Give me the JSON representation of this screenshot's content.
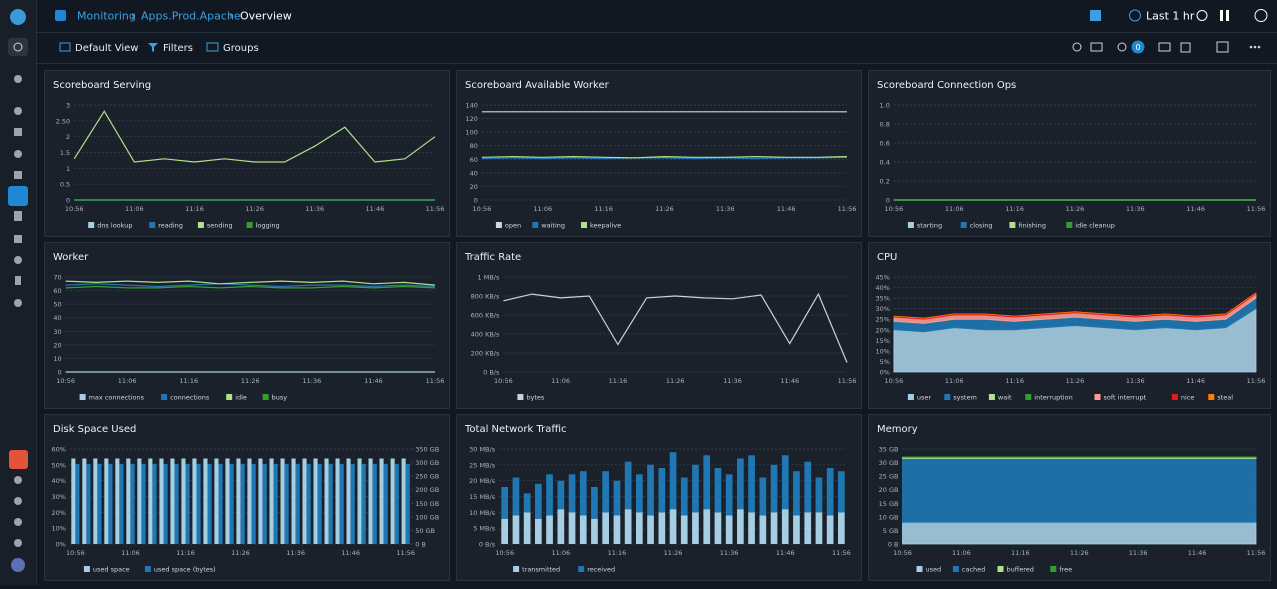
{
  "header": {
    "breadcrumb": [
      "Monitoring",
      "Apps.Prod.Apache",
      "Overview"
    ],
    "time_range": "Last 1 hr",
    "alert_count": "0"
  },
  "toolbar": [
    "Default View",
    "Filters",
    "Groups"
  ],
  "chart_data": [
    {
      "type": "line",
      "title": "Scoreboard Serving",
      "categories": [
        "10:56",
        null,
        "11:06",
        null,
        "11:16",
        null,
        "11:26",
        null,
        "11:36",
        null,
        "11:46",
        null,
        "11:56"
      ],
      "ylim": [
        0,
        3
      ],
      "yticks": [
        0,
        0.5,
        1,
        1.5,
        2,
        {
          "value": 2.5,
          "label": "2.50"
        },
        3
      ],
      "grid": true,
      "series": [
        {
          "name": "dns lookup",
          "color": "#a6cee3",
          "values": [
            0,
            0,
            0,
            0,
            0,
            0,
            0,
            0,
            0,
            0,
            0,
            0,
            0
          ]
        },
        {
          "name": "reading",
          "color": "#1f78b4",
          "values": [
            0,
            0,
            0,
            0,
            0,
            0,
            0,
            0,
            0,
            0,
            0,
            0,
            0
          ]
        },
        {
          "name": "sending",
          "color": "#b2df8a",
          "values": [
            1.3,
            2.8,
            1.2,
            1.3,
            1.2,
            1.3,
            1.2,
            1.2,
            1.7,
            2.3,
            1.2,
            1.3,
            2.0
          ]
        },
        {
          "name": "logging",
          "color": "#33a02c",
          "values": [
            0,
            0,
            0,
            0,
            0,
            0,
            0,
            0,
            0,
            0,
            0,
            0,
            0
          ]
        }
      ]
    },
    {
      "type": "line",
      "title": "Scoreboard Available Worker",
      "categories": [
        "10:56",
        null,
        "11:06",
        null,
        "11:16",
        null,
        "11:26",
        null,
        "11:36",
        null,
        "11:46",
        null,
        "11:56"
      ],
      "ylim": [
        0,
        140
      ],
      "yticks": [
        0,
        20,
        40,
        60,
        80,
        100,
        120,
        140
      ],
      "grid": true,
      "series": [
        {
          "name": "open",
          "color": "#c8dbe6",
          "values": [
            130,
            130,
            130,
            130,
            130,
            130,
            130,
            130,
            130,
            130,
            130,
            130,
            130
          ]
        },
        {
          "name": "waiting",
          "color": "#1f78b4",
          "values": [
            61,
            62,
            61,
            62,
            61,
            62,
            62,
            61,
            62,
            61,
            62,
            62,
            63
          ]
        },
        {
          "name": "keepalive",
          "color": "#b2df8a",
          "values": [
            63,
            64,
            63,
            64,
            63,
            62,
            64,
            63,
            63,
            64,
            63,
            63,
            64
          ]
        }
      ]
    },
    {
      "type": "line",
      "title": "Scoreboard Connection Ops",
      "categories": [
        "10:56",
        null,
        "11:06",
        null,
        "11:16",
        null,
        "11:26",
        null,
        "11:36",
        null,
        "11:46",
        null,
        "11:56"
      ],
      "ylim": [
        0,
        1
      ],
      "yticks": [
        0,
        0.2,
        0.4,
        0.6,
        0.8,
        {
          "value": 1,
          "label": "1.0"
        }
      ],
      "grid": true,
      "series": [
        {
          "name": "starting",
          "color": "#a6cee3",
          "values": [
            0,
            0,
            0,
            0,
            0,
            0,
            0,
            0,
            0,
            0,
            0,
            0,
            0
          ]
        },
        {
          "name": "closing",
          "color": "#1f78b4",
          "values": [
            0,
            0,
            0,
            0,
            0,
            0,
            0,
            0,
            0,
            0,
            0,
            0,
            0
          ]
        },
        {
          "name": "finishing",
          "color": "#b2df8a",
          "values": [
            0,
            0,
            0,
            0,
            0,
            0,
            0,
            0,
            0,
            0,
            0,
            0,
            0
          ]
        },
        {
          "name": "idle cleanup",
          "color": "#33a02c",
          "values": [
            0,
            0,
            0,
            0,
            0,
            0,
            0,
            0,
            0,
            0,
            0,
            0,
            0
          ]
        }
      ]
    },
    {
      "type": "line",
      "title": "Worker",
      "categories": [
        "10:56",
        null,
        "11:06",
        null,
        "11:16",
        null,
        "11:26",
        null,
        "11:36",
        null,
        "11:46",
        null,
        "11:56"
      ],
      "ylim": [
        0,
        70
      ],
      "yticks": [
        0,
        10,
        20,
        30,
        40,
        50,
        60,
        70
      ],
      "grid": true,
      "series": [
        {
          "name": "max connections",
          "color": "#a6cee3",
          "values": [
            0,
            0,
            0,
            0,
            0,
            0,
            0,
            0,
            0,
            0,
            0,
            0,
            0
          ]
        },
        {
          "name": "connections",
          "color": "#1f78b4",
          "values": [
            64,
            65,
            64,
            63,
            64,
            65,
            64,
            63,
            64,
            64,
            63,
            64,
            63
          ]
        },
        {
          "name": "idle",
          "color": "#b2df8a",
          "values": [
            67,
            66,
            67,
            66,
            67,
            65,
            66,
            67,
            66,
            67,
            65,
            66,
            64
          ]
        },
        {
          "name": "busy",
          "color": "#33a02c",
          "values": [
            62,
            63,
            62,
            62,
            63,
            62,
            63,
            62,
            62,
            63,
            62,
            63,
            62
          ]
        }
      ]
    },
    {
      "type": "line",
      "title": "Traffic Rate",
      "categories": [
        "10:56",
        null,
        "11:06",
        null,
        "11:16",
        null,
        "11:26",
        null,
        "11:36",
        null,
        "11:46",
        null,
        "11:56"
      ],
      "ylim": [
        0,
        1000
      ],
      "yticks": [
        {
          "value": 0,
          "label": "0 B/s"
        },
        {
          "value": 200,
          "label": "200 KB/s"
        },
        {
          "value": 400,
          "label": "400 KB/s"
        },
        {
          "value": 600,
          "label": "600 KB/s"
        },
        {
          "value": 800,
          "label": "800 KB/s"
        },
        {
          "value": 1000,
          "label": "1 MB/s"
        }
      ],
      "grid": true,
      "series": [
        {
          "name": "bytes",
          "color": "#c8d3dc",
          "values": [
            750,
            820,
            780,
            800,
            290,
            780,
            800,
            780,
            770,
            810,
            300,
            820,
            100
          ]
        }
      ]
    },
    {
      "type": "area",
      "title": "CPU",
      "categories": [
        "10:56",
        null,
        "11:06",
        null,
        "11:16",
        null,
        "11:26",
        null,
        "11:36",
        null,
        "11:46",
        null,
        "11:56"
      ],
      "ylim": [
        0,
        45
      ],
      "yticks": [
        {
          "value": 0,
          "label": "0%"
        },
        {
          "value": 5,
          "label": "5%"
        },
        {
          "value": 10,
          "label": "10%"
        },
        {
          "value": 15,
          "label": "15%"
        },
        {
          "value": 20,
          "label": "20%"
        },
        {
          "value": 25,
          "label": "25%"
        },
        {
          "value": 30,
          "label": "30%"
        },
        {
          "value": 35,
          "label": "35%"
        },
        {
          "value": 40,
          "label": "40%"
        },
        {
          "value": 45,
          "label": "45%"
        }
      ],
      "grid": true,
      "series": [
        {
          "name": "user",
          "color": "#a6cee3",
          "values": [
            20,
            19,
            21,
            20,
            20,
            21,
            22,
            21,
            20,
            21,
            20,
            21,
            30
          ]
        },
        {
          "name": "system",
          "color": "#1f78b4",
          "values": [
            4,
            4,
            4,
            5,
            4,
            4,
            4,
            4,
            4,
            4,
            4,
            4,
            5
          ]
        },
        {
          "name": "wait",
          "color": "#b2df8a",
          "values": [
            0,
            0,
            0,
            0,
            0,
            0,
            0,
            0,
            0,
            0,
            0,
            0,
            0
          ]
        },
        {
          "name": "interruption",
          "color": "#33a02c",
          "values": [
            0,
            0,
            0,
            0,
            0,
            0,
            0,
            0,
            0,
            0,
            0,
            0,
            0
          ]
        },
        {
          "name": "soft interrupt",
          "color": "#fb9a99",
          "values": [
            2,
            2,
            2,
            2,
            2,
            2,
            2,
            2,
            2,
            2,
            2,
            2,
            2
          ]
        },
        {
          "name": "nice",
          "color": "#e31a1c",
          "values": [
            0.5,
            0.5,
            0.5,
            0.5,
            0.5,
            0.5,
            0.5,
            0.5,
            0.5,
            0.5,
            0.5,
            0.5,
            0.5
          ]
        },
        {
          "name": "steal",
          "color": "#ff7f00",
          "values": [
            0,
            0,
            0,
            0,
            0,
            0,
            0,
            0,
            0,
            0,
            0,
            0,
            0
          ]
        }
      ]
    },
    {
      "type": "bar",
      "title": "Disk Space Used",
      "categories": [
        "10:56",
        null,
        null,
        null,
        null,
        "11:06",
        null,
        null,
        null,
        null,
        "11:16",
        null,
        null,
        null,
        null,
        "11:26",
        null,
        null,
        null,
        null,
        "11:36",
        null,
        null,
        null,
        null,
        "11:46",
        null,
        null,
        null,
        null,
        "11:56"
      ],
      "ylim": [
        0,
        60
      ],
      "yticks": [
        {
          "value": 0,
          "label": "0%"
        },
        {
          "value": 10,
          "label": "10%"
        },
        {
          "value": 20,
          "label": "20%"
        },
        {
          "value": 30,
          "label": "30%"
        },
        {
          "value": 40,
          "label": "40%"
        },
        {
          "value": 50,
          "label": "50%"
        },
        {
          "value": 60,
          "label": "60%"
        }
      ],
      "y2lim": [
        0,
        350
      ],
      "y2ticks": [
        {
          "value": 0,
          "label": "0 B"
        },
        {
          "value": 50,
          "label": "50 GB"
        },
        {
          "value": 100,
          "label": "100 GB"
        },
        {
          "value": 150,
          "label": "150 GB"
        },
        {
          "value": 200,
          "label": "200 GB"
        },
        {
          "value": 250,
          "label": "250 GB"
        },
        {
          "value": 300,
          "label": "300 GB"
        },
        {
          "value": 350,
          "label": "350 GB"
        }
      ],
      "grid": true,
      "series": [
        {
          "name": "used space",
          "color": "#a6cee3",
          "values": [
            54,
            54,
            54,
            54,
            54,
            54,
            54,
            54,
            54,
            54,
            54,
            54,
            54,
            54,
            54,
            54,
            54,
            54,
            54,
            54,
            54,
            54,
            54,
            54,
            54,
            54,
            54,
            54,
            54,
            54,
            54
          ]
        },
        {
          "name": "used space (bytes)",
          "color": "#1f78b4",
          "axis": "y2",
          "values": [
            295,
            295,
            295,
            295,
            295,
            295,
            295,
            295,
            295,
            295,
            295,
            295,
            295,
            295,
            295,
            295,
            295,
            295,
            295,
            295,
            295,
            295,
            295,
            295,
            295,
            295,
            295,
            295,
            295,
            295,
            295
          ]
        }
      ]
    },
    {
      "type": "bar",
      "stacked": true,
      "title": "Total Network Traffic",
      "categories": [
        "10:56",
        null,
        null,
        null,
        null,
        "11:06",
        null,
        null,
        null,
        null,
        "11:16",
        null,
        null,
        null,
        null,
        "11:26",
        null,
        null,
        null,
        null,
        "11:36",
        null,
        null,
        null,
        null,
        "11:46",
        null,
        null,
        null,
        null,
        "11:56"
      ],
      "ylim": [
        0,
        30
      ],
      "yticks": [
        {
          "value": 0,
          "label": "0 B/s"
        },
        {
          "value": 5,
          "label": "5 MB/s"
        },
        {
          "value": 10,
          "label": "10 MB/s"
        },
        {
          "value": 15,
          "label": "15 MB/s"
        },
        {
          "value": 20,
          "label": "20 MB/s"
        },
        {
          "value": 25,
          "label": "25 MB/s"
        },
        {
          "value": 30,
          "label": "30 MB/s"
        }
      ],
      "grid": true,
      "series": [
        {
          "name": "transmitted",
          "color": "#a6cee3",
          "values": [
            8,
            9,
            10,
            8,
            9,
            11,
            10,
            9,
            8,
            10,
            9,
            11,
            10,
            9,
            10,
            11,
            9,
            10,
            11,
            10,
            9,
            11,
            10,
            9,
            10,
            11,
            9,
            10,
            10,
            9,
            10
          ]
        },
        {
          "name": "received",
          "color": "#1f78b4",
          "values": [
            10,
            12,
            6,
            11,
            13,
            9,
            12,
            14,
            10,
            13,
            11,
            15,
            12,
            16,
            14,
            18,
            12,
            15,
            17,
            14,
            13,
            16,
            18,
            12,
            15,
            17,
            14,
            16,
            11,
            15,
            13
          ]
        }
      ]
    },
    {
      "type": "area",
      "title": "Memory",
      "categories": [
        "10:56",
        null,
        "11:06",
        null,
        "11:16",
        null,
        "11:26",
        null,
        "11:36",
        null,
        "11:46",
        null,
        "11:56"
      ],
      "ylim": [
        0,
        35
      ],
      "yticks": [
        {
          "value": 0,
          "label": "0 B"
        },
        {
          "value": 5,
          "label": "5 GB"
        },
        {
          "value": 10,
          "label": "10 GB"
        },
        {
          "value": 15,
          "label": "15 GB"
        },
        {
          "value": 20,
          "label": "20 GB"
        },
        {
          "value": 25,
          "label": "25 GB"
        },
        {
          "value": 30,
          "label": "30 GB"
        },
        {
          "value": 35,
          "label": "35 GB"
        }
      ],
      "grid": true,
      "series": [
        {
          "name": "used",
          "color": "#a6cee3",
          "values": [
            8,
            8,
            8,
            8,
            8,
            8,
            8,
            8,
            8,
            8,
            8,
            8,
            8
          ]
        },
        {
          "name": "cached",
          "color": "#1f78b4",
          "values": [
            23.5,
            23.5,
            23.5,
            23.5,
            23.5,
            23.5,
            23.5,
            23.5,
            23.5,
            23.5,
            23.5,
            23.5,
            23.5
          ]
        },
        {
          "name": "buffered",
          "color": "#b2df8a",
          "values": [
            0.4,
            0.4,
            0.4,
            0.4,
            0.4,
            0.4,
            0.4,
            0.4,
            0.4,
            0.4,
            0.4,
            0.4,
            0.4
          ]
        },
        {
          "name": "free",
          "color": "#33a02c",
          "values": [
            0.2,
            0.2,
            0.2,
            0.2,
            0.2,
            0.2,
            0.2,
            0.2,
            0.2,
            0.2,
            0.2,
            0.2,
            0.2
          ]
        }
      ]
    }
  ]
}
